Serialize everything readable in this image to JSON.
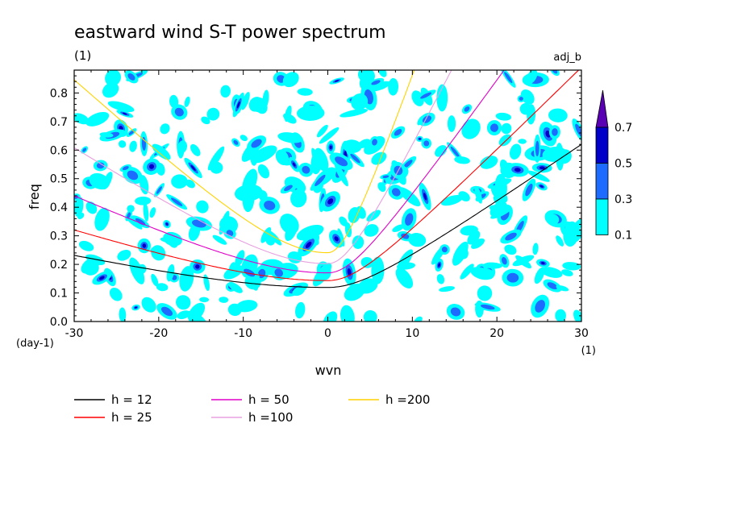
{
  "chart_data": {
    "type": "contour",
    "title": "eastward wind S-T power spectrum",
    "subtitle": "(1)",
    "dataset_label": "adj_b",
    "xlabel": "wvn",
    "x_unit": "(1)",
    "ylabel": "freq",
    "y_unit": "(day-1)",
    "xlim": [
      -30,
      30
    ],
    "ylim": [
      0,
      0.88
    ],
    "x_ticks": [
      -30,
      -20,
      -10,
      0,
      10,
      20,
      30
    ],
    "y_ticks": [
      0,
      0.1,
      0.2,
      0.3,
      0.4,
      0.5,
      0.6,
      0.7,
      0.8
    ],
    "x_tick_labels": [
      "-30",
      "-20",
      "-10",
      "0",
      "10",
      "20",
      "30"
    ],
    "y_tick_labels": [
      "0.0",
      "0.1",
      "0.2",
      "0.3",
      "0.4",
      "0.5",
      "0.6",
      "0.7",
      "0.8"
    ],
    "contour_levels": [
      0.1,
      0.3,
      0.5,
      0.7
    ],
    "contour_level_labels": [
      "0.1",
      "0.3",
      "0.5",
      "0.7"
    ],
    "contour_colors": [
      "#00ffff",
      "#1e6cff",
      "#0000c8",
      "#5a00b4"
    ],
    "series": [
      {
        "name": "h = 12",
        "h": 12,
        "color": "#000000",
        "type": "dispersion_curve"
      },
      {
        "name": "h = 25",
        "h": 25,
        "color": "#ff0000",
        "type": "dispersion_curve"
      },
      {
        "name": "h = 50",
        "h": 50,
        "color": "#e000c8",
        "type": "dispersion_curve"
      },
      {
        "name": "h =100",
        "h": 100,
        "color": "#e8a0e0",
        "type": "dispersion_curve"
      },
      {
        "name": "h =200",
        "h": 200,
        "color": "#ffd200",
        "type": "dispersion_curve"
      }
    ]
  }
}
